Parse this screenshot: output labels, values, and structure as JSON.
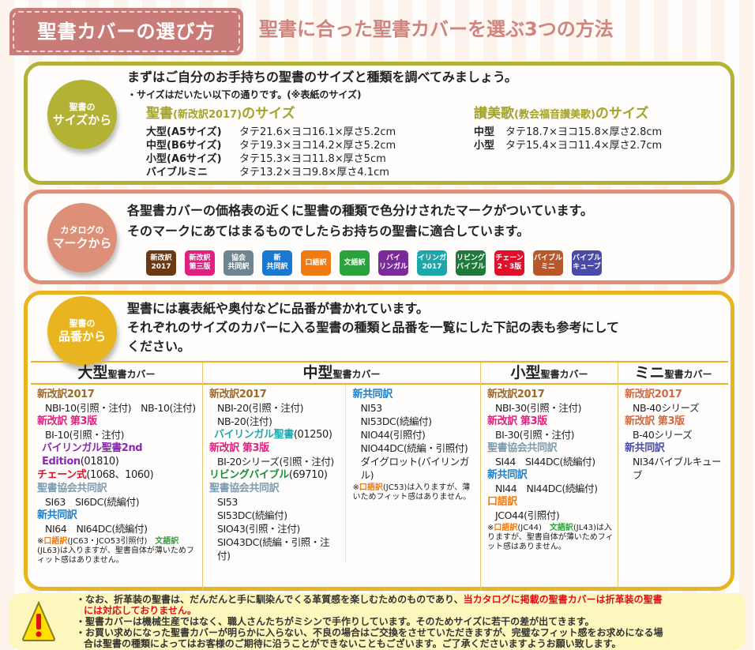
{
  "header": {
    "title": "聖書カバーの選び方",
    "subtitle": "聖書に合った聖書カバーを選ぶ3つの方法"
  },
  "colors": {
    "size": "#b3b235",
    "mark": "#dd8f78",
    "number": "#e8b520",
    "title": "#c97b78"
  },
  "size_section": {
    "badge_top": "聖書の",
    "badge_bottom": "サイズから",
    "heading": "まずはご自分のお手持ちの聖書のサイズと種類を調べてみましょう。",
    "note": "・サイズはだいたい以下の通りです。(※表紙のサイズ)",
    "bible_title": "聖書",
    "bible_title_paren": "(新改訳2017)",
    "bible_title_suffix": "のサイズ",
    "bible_rows": [
      {
        "label": "大型(A5サイズ)",
        "value": "タテ21.6×ヨコ16.1×厚さ5.2cm"
      },
      {
        "label": "中型(B6サイズ)",
        "value": "タテ19.3×ヨコ14.2×厚さ5.2cm"
      },
      {
        "label": "小型(A6サイズ)",
        "value": "タテ15.3×ヨコ11.8×厚さ5cm"
      },
      {
        "label": "バイブルミニ",
        "value": "タテ13.2×ヨコ9.8×厚さ4.1cm"
      }
    ],
    "hymn_title": "讃美歌",
    "hymn_title_paren": "(教会福音讃美歌)",
    "hymn_title_suffix": "のサイズ",
    "hymn_rows": [
      {
        "label": "中型",
        "value": "タテ18.7×ヨコ15.8×厚さ2.8cm"
      },
      {
        "label": "小型",
        "value": "タテ15.4×ヨコ11.4×厚さ2.7cm"
      }
    ]
  },
  "mark_section": {
    "badge_top": "カタログの",
    "badge_bottom": "マークから",
    "line1": "各聖書カバーの価格表の近くに聖書の種類で色分けされたマークがついています。",
    "line2": "そのマークにあてはまるものでしたらお持ちの聖書に適合しています。",
    "marks": [
      {
        "label": "新改訳\n2017",
        "color": "#6b3a14"
      },
      {
        "label": "新改訳\n第三版",
        "color": "#e0207f"
      },
      {
        "label": "協会\n共同訳",
        "color": "#6d8591"
      },
      {
        "label": "新\n共同訳",
        "color": "#1a78d0"
      },
      {
        "label": "口語訳",
        "color": "#ef7b12"
      },
      {
        "label": "文語訳",
        "color": "#2ba33c"
      },
      {
        "label": "バイ\nリンガル",
        "color": "#7b2a9b"
      },
      {
        "label": "バイリンガル\n2017",
        "color": "#1ca8aa"
      },
      {
        "label": "リビング\nバイブル",
        "color": "#1f7a3a"
      },
      {
        "label": "チェーン\n2・3版",
        "color": "#e0102a"
      },
      {
        "label": "バイブル\nミニ",
        "color": "#b8572a"
      },
      {
        "label": "バイブル\nキューブ",
        "color": "#4a4aa8"
      }
    ]
  },
  "number_section": {
    "badge_top": "聖書の",
    "badge_bottom": "品番から",
    "line1": "聖書には裏表紙や奥付などに品番が書かれています。",
    "line2": "それぞれのサイズのカバーに入る聖書の種類と品番を一覧にした下記の表も参考にして",
    "line3": "ください。",
    "table": [
      {
        "size": "大型",
        "suffix": "聖書カバー",
        "groups": [
          {
            "heading": "新改訳2017",
            "color": "#9a6a2a",
            "items": [
              "NBI-10(引照・注付)　NB-10(注付)"
            ]
          },
          {
            "heading": "新改訳 第3版",
            "color": "#e0207f",
            "items": [
              "BI-10(引照・注付)"
            ]
          },
          {
            "heading": "バイリンガル聖書2nd Edition",
            "suffix": "(01810)",
            "color": "#8a2ab0",
            "items": [],
            "indent": true
          },
          {
            "heading": "チェーン式",
            "suffix": "(1068、1060)",
            "color": "#e0102a",
            "items": []
          },
          {
            "heading": "聖書協会共同訳",
            "color": "#7d9cb0",
            "items": [
              "SI63　SI6DC(続編付)"
            ]
          },
          {
            "heading": "新共同訳",
            "color": "#1a80d0",
            "items": [
              "NI64　NI64DC(続編付)"
            ]
          }
        ],
        "note": [
          {
            "text": "※"
          },
          {
            "text": "口語訳",
            "color": "#ef7b12"
          },
          {
            "text": "(JC63・JCO53引照付)　"
          },
          {
            "text": "文語訳",
            "color": "#2ba33c"
          },
          {
            "text": "(JL63)は入りますが、聖書自体が薄いためフィット感はありません。"
          }
        ]
      },
      {
        "size": "中型",
        "suffix": "聖書カバー",
        "groups": [
          {
            "heading": "新改訳2017",
            "color": "#9a6a2a",
            "items": [
              "NBI-20(引照・注付)",
              "NB-20(注付)"
            ]
          },
          {
            "heading": "バイリンガル聖書",
            "suffix": "(01250)",
            "color": "#20a8b0",
            "items": [],
            "indent": true
          },
          {
            "heading": "新改訳 第3版",
            "color": "#e0207f",
            "items": [
              "BI-20シリーズ(引照・注付)"
            ]
          },
          {
            "heading": "リビングバイブル",
            "suffix": "(69710)",
            "color": "#1f8a3a",
            "items": []
          },
          {
            "heading": "聖書協会共同訳",
            "color": "#7d9cb0",
            "items": [
              "SI53",
              "SI53DC(続編付)",
              "SIO43(引照・注付)",
              "SIO43DC(続編・引照・注付)"
            ]
          }
        ],
        "groups2": [
          {
            "heading": "新共同訳",
            "color": "#1a80d0",
            "items": [
              "NI53",
              "NI53DC(続編付)",
              "NIO44(引照付)",
              "NIO44DC(続編・引照付)",
              "ダイグロット(バイリンガル)"
            ]
          }
        ],
        "note": [
          {
            "text": "※"
          },
          {
            "text": "口語訳",
            "color": "#ef7b12"
          },
          {
            "text": "(JC53)は入りますが、薄いためフィット感はありません。"
          }
        ]
      },
      {
        "size": "小型",
        "suffix": "聖書カバー",
        "groups": [
          {
            "heading": "新改訳2017",
            "color": "#9a6a2a",
            "items": [
              "NBI-30(引照・注付)"
            ]
          },
          {
            "heading": "新改訳 第3版",
            "color": "#e0207f",
            "items": [
              "BI-30(引照・注付)"
            ]
          },
          {
            "heading": "聖書協会共同訳",
            "color": "#7d9cb0",
            "items": [
              "SI44　SI44DC(続編付)"
            ]
          },
          {
            "heading": "新共同訳",
            "color": "#1a80d0",
            "items": [
              "NI44　NI44DC(続編付)"
            ]
          },
          {
            "heading": "口語訳",
            "color": "#ef7b12",
            "items": [
              "JCO44(引照付)"
            ]
          }
        ],
        "note": [
          {
            "text": "※"
          },
          {
            "text": "口語訳",
            "color": "#ef7b12"
          },
          {
            "text": "(JC44)　"
          },
          {
            "text": "文語訳",
            "color": "#2ba33c"
          },
          {
            "text": "(JL43)は入りますが、聖書自体が薄いためフィット感はありません。"
          }
        ]
      },
      {
        "size": "ミニ",
        "suffix": "聖書カバー",
        "groups": [
          {
            "heading": "新改訳2017",
            "color": "#d06a40",
            "items": [
              "NB-40シリーズ"
            ]
          },
          {
            "heading": "新改訳 第3版",
            "color": "#d06a40",
            "items": [
              "B-40シリーズ"
            ]
          },
          {
            "heading": "新共同訳",
            "color": "#4a4aa8",
            "items": [
              "NI34バイブルキューブ"
            ]
          }
        ]
      }
    ]
  },
  "warning": {
    "icon": "warning-icon",
    "l1a": "・なお、折革装の聖書は、だんだんと手に馴染んでくる革質感を楽しむためのものであり、",
    "l1b": "当カタログに掲載の聖書カバーは折革装の聖書",
    "l1c": "には対応しておりません。",
    "l2": "・聖書カバーは機械生産ではなく、職人さんたちがミシンで手作りしています。そのためサイズに若干の差が出てきます。",
    "l3": "・お買い求めになった聖書カバーが明らかに入らない、不良の場合はご交換をさせていただきますが、完璧なフィット感をお求めになる場",
    "l4": "合は聖書の種類によってはお客様のご期待に沿うことができないこともございます。ご了承くださいますようお願い致します。"
  }
}
